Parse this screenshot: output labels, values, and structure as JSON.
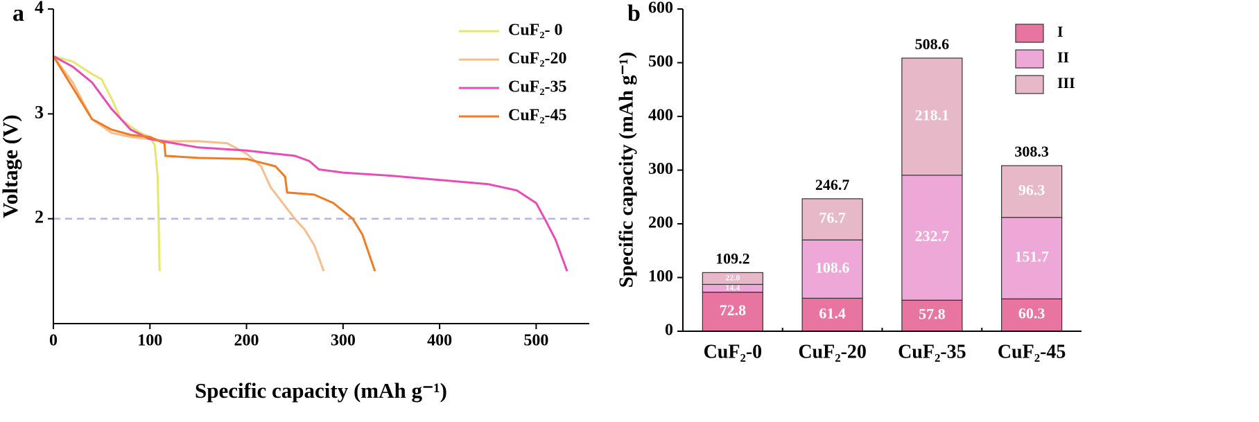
{
  "chart_data": [
    {
      "type": "line",
      "panel_label": "a",
      "x_label": "Specific capacity (mAh g⁻¹)",
      "y_label": "Voltage (V)",
      "xlim": [
        0,
        555
      ],
      "ylim": [
        1.0,
        4.0
      ],
      "xticks": [
        0,
        100,
        200,
        300,
        400,
        500
      ],
      "yticks": [
        2,
        3,
        4
      ],
      "reference_line": 2,
      "reference_color": "#b4b4e6",
      "legend": "upper right",
      "series": [
        {
          "name": "CuF₂- 0",
          "color": "#e6e66e",
          "x": [
            0,
            20,
            40,
            50,
            60,
            70,
            80,
            90,
            100,
            105,
            108,
            109,
            110
          ],
          "values": [
            3.55,
            3.5,
            3.38,
            3.33,
            3.15,
            2.95,
            2.88,
            2.82,
            2.78,
            2.7,
            2.4,
            2.0,
            1.5
          ]
        },
        {
          "name": "CuF₂-20",
          "color": "#f7be8c",
          "x": [
            0,
            20,
            40,
            60,
            80,
            100,
            120,
            150,
            180,
            200,
            215,
            225,
            240,
            250,
            260,
            270,
            280
          ],
          "values": [
            3.55,
            3.3,
            2.95,
            2.82,
            2.78,
            2.76,
            2.74,
            2.74,
            2.72,
            2.62,
            2.5,
            2.3,
            2.12,
            2.0,
            1.9,
            1.75,
            1.5
          ]
        },
        {
          "name": "CuF₂-35",
          "color": "#e94bb6",
          "x": [
            0,
            20,
            40,
            60,
            80,
            100,
            150,
            200,
            250,
            265,
            275,
            300,
            350,
            400,
            450,
            480,
            500,
            510,
            520,
            532
          ],
          "values": [
            3.55,
            3.45,
            3.3,
            3.05,
            2.85,
            2.76,
            2.68,
            2.65,
            2.6,
            2.55,
            2.47,
            2.44,
            2.41,
            2.37,
            2.33,
            2.27,
            2.15,
            1.98,
            1.8,
            1.5
          ]
        },
        {
          "name": "CuF₂-45",
          "color": "#f07b22",
          "x": [
            0,
            20,
            40,
            60,
            80,
            100,
            115,
            116,
            150,
            200,
            230,
            240,
            242,
            270,
            290,
            310,
            320,
            333
          ],
          "values": [
            3.55,
            3.25,
            2.95,
            2.85,
            2.8,
            2.78,
            2.72,
            2.6,
            2.58,
            2.57,
            2.5,
            2.4,
            2.25,
            2.23,
            2.15,
            2.0,
            1.85,
            1.5
          ]
        }
      ]
    },
    {
      "type": "stacked_bar",
      "panel_label": "b",
      "y_label": "Specific capacity (mAh g⁻¹)",
      "ylim": [
        0,
        600
      ],
      "yticks": [
        0,
        100,
        200,
        300,
        400,
        500,
        600
      ],
      "legend": "upper right",
      "categories": [
        "CuF₂-0",
        "CuF₂-20",
        "CuF₂-35",
        "CuF₂-45"
      ],
      "totals": [
        109.2,
        246.7,
        508.6,
        308.3
      ],
      "series": [
        {
          "name": "I",
          "color": "#e8759f",
          "values": [
            72.8,
            61.4,
            57.8,
            60.3
          ]
        },
        {
          "name": "II",
          "color": "#eea8d8",
          "values": [
            14.4,
            108.6,
            232.7,
            151.7
          ]
        },
        {
          "name": "III",
          "color": "#e6b8c8",
          "values": [
            22.0,
            76.7,
            218.1,
            96.3
          ],
          "value_labels": [
            "22.0",
            "76.7",
            "218.1",
            "96.3"
          ]
        }
      ]
    }
  ]
}
